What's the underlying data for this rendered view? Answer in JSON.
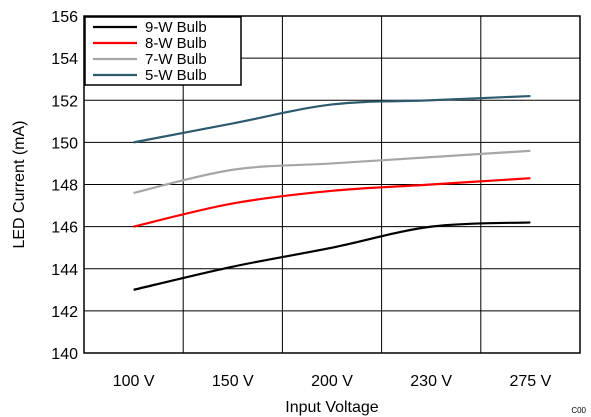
{
  "chart_data": {
    "type": "line",
    "xlabel": "Input Voltage",
    "ylabel": "LED Current (mA)",
    "code_label": "C00",
    "categories": [
      "100 V",
      "150 V",
      "200 V",
      "230 V",
      "275 V"
    ],
    "ylim": [
      140,
      156
    ],
    "yticks": [
      140,
      142,
      144,
      146,
      148,
      150,
      152,
      154,
      156
    ],
    "grid": true,
    "legend_position": "top-left",
    "series": [
      {
        "name": "9-W Bulb",
        "color": "#000000",
        "values": [
          143.0,
          144.1,
          145.0,
          146.0,
          146.2
        ]
      },
      {
        "name": "8-W Bulb",
        "color": "#ff0000",
        "values": [
          146.0,
          147.1,
          147.7,
          148.0,
          148.3
        ]
      },
      {
        "name": "7-W Bulb",
        "color": "#a6a6a6",
        "values": [
          147.6,
          148.7,
          149.0,
          149.3,
          149.6
        ]
      },
      {
        "name": "5-W Bulb",
        "color": "#2e5a6e",
        "values": [
          150.0,
          150.9,
          151.8,
          152.0,
          152.2
        ]
      }
    ]
  }
}
